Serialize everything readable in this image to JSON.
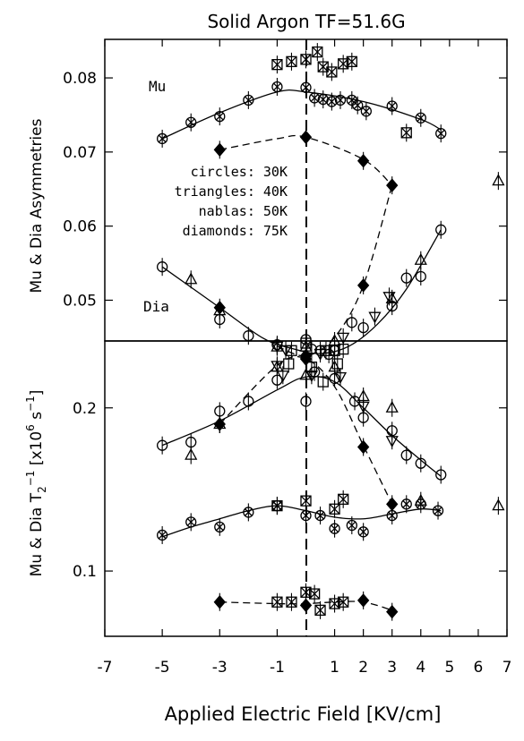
{
  "chart_data": {
    "type": "scatter",
    "title": "Solid Argon TF=51.6G",
    "xlabel": "Applied Electric Field [KV/cm]",
    "xlim": [
      -7,
      7
    ],
    "x_ticks": [
      -7,
      -5,
      -3,
      -1,
      1,
      2,
      3,
      4,
      5,
      6,
      7
    ],
    "x_tick_labels": [
      "-7",
      "-5",
      "-3",
      "-1",
      "1",
      "2",
      "3",
      "4",
      "5",
      "6",
      "7"
    ],
    "grid": false,
    "panels": [
      {
        "id": "top",
        "ylabel": "Mu & Dia Asymmetries",
        "ylim": [
          0.0445,
          0.0852
        ],
        "y_ticks": [
          0.05,
          0.06,
          0.07,
          0.08
        ],
        "y_tick_labels": [
          "0.05",
          "0.06",
          "0.07",
          "0.08"
        ],
        "annotations": {
          "mu": "Mu",
          "dia": "Dia",
          "legend_lines": [
            "circles: 30K",
            "triangles: 40K",
            "nablas: 50K",
            "diamonds: 75K"
          ]
        },
        "series": [
          {
            "marker": "crossed-circle",
            "label": "Mu",
            "x": [
              -5,
              -4,
              -3,
              -2,
              -1,
              0,
              0.3,
              0.6,
              0.9,
              1.2,
              1.6,
              1.8,
              2.1,
              3,
              4,
              4.7
            ],
            "y": [
              0.0718,
              0.074,
              0.0748,
              0.077,
              0.0788,
              0.0787,
              0.0773,
              0.0771,
              0.0768,
              0.077,
              0.077,
              0.0763,
              0.0755,
              0.0762,
              0.0746,
              0.0725
            ]
          },
          {
            "marker": "crossed-square",
            "x": [
              -1,
              -0.5,
              0,
              0.4,
              0.6,
              0.9,
              1.3,
              1.6,
              3.5
            ],
            "y": [
              0.0818,
              0.0822,
              0.0825,
              0.0835,
              0.0815,
              0.0808,
              0.0819,
              0.0822,
              0.0726
            ]
          },
          {
            "marker": "filled-diamond",
            "label": "75K",
            "x": [
              -3,
              0,
              2,
              3
            ],
            "y": [
              0.0703,
              0.072,
              0.0688,
              0.0655
            ]
          },
          {
            "marker": "open-circle",
            "label": "30K",
            "x": [
              -5,
              -3,
              -2,
              -1,
              0,
              0.2,
              0.5,
              0.8,
              1,
              1.6,
              2,
              3,
              3.5,
              4,
              4.7
            ],
            "y": [
              0.0545,
              0.0474,
              0.0452,
              0.044,
              0.0447,
              0.0434,
              0.0432,
              0.0427,
              0.0432,
              0.047,
              0.0463,
              0.0492,
              0.053,
              0.0532,
              0.0595
            ]
          },
          {
            "marker": "triangle",
            "label": "40K",
            "x": [
              -4,
              -3,
              -1,
              0,
              1,
              3,
              4,
              6.7
            ],
            "y": [
              0.0528,
              0.0486,
              0.0437,
              0.0437,
              0.0445,
              0.0502,
              0.0554,
              0.0661
            ]
          },
          {
            "marker": "nabla",
            "label": "50K",
            "x": [
              -1,
              -0.7,
              0.5,
              1.3,
              2.4,
              2.9
            ],
            "y": [
              0.0438,
              0.0433,
              0.0428,
              0.045,
              0.0478,
              0.0505
            ]
          },
          {
            "marker": "filled-diamond",
            "label": "75K",
            "x": [
              -3,
              0,
              2
            ],
            "y": [
              0.049,
              0.0425,
              0.052
            ]
          },
          {
            "marker": "open-square",
            "x": [
              -0.5,
              0,
              0.7,
              1,
              1.3
            ],
            "y": [
              0.0432,
              0.0442,
              0.0432,
              0.0432,
              0.0434
            ]
          }
        ],
        "curves": [
          {
            "style": "solid",
            "x": [
              -5,
              -3,
              -1,
              0,
              2,
              4,
              4.7
            ],
            "y": [
              0.0718,
              0.0753,
              0.0781,
              0.0781,
              0.0768,
              0.0744,
              0.073
            ]
          },
          {
            "style": "dashed",
            "x": [
              -3,
              -1,
              0,
              2,
              3
            ],
            "y": [
              0.0703,
              0.0718,
              0.072,
              0.069,
              0.0655
            ]
          },
          {
            "style": "solid",
            "x": [
              -5,
              -3,
              -1.5,
              -0.5,
              0.5,
              1.5,
              2.5,
              3.5,
              4.7
            ],
            "y": [
              0.0545,
              0.049,
              0.0449,
              0.0435,
              0.0428,
              0.0438,
              0.0468,
              0.0515,
              0.0595
            ]
          },
          {
            "style": "dashed",
            "x": [
              -1,
              0,
              1,
              2,
              3
            ],
            "y": [
              0.0438,
              0.0425,
              0.045,
              0.052,
              0.0655
            ]
          }
        ]
      },
      {
        "id": "bottom",
        "ylabel": "Mu & Dia T2^-1 [x10^6 s^-1]",
        "ylim": [
          0.06,
          0.241
        ],
        "y_ticks": [
          0.1,
          0.2
        ],
        "y_tick_labels": [
          "0.1",
          "0.2"
        ],
        "series": [
          {
            "marker": "open-circle",
            "label": "30K",
            "x": [
              -5,
              -4,
              -3,
              -2,
              -1,
              0,
              0.3,
              1,
              1.7,
              2,
              3,
              3.5,
              4,
              4.7
            ],
            "y": [
              0.177,
              0.179,
              0.198,
              0.204,
              0.217,
              0.204,
              0.222,
              0.218,
              0.204,
              0.194,
              0.186,
              0.171,
              0.166,
              0.159
            ]
          },
          {
            "marker": "triangle",
            "label": "40K",
            "x": [
              -4,
              -3,
              -1,
              0,
              1,
              2,
              3,
              4,
              6.7
            ],
            "y": [
              0.171,
              0.19,
              0.225,
              0.22,
              0.225,
              0.207,
              0.2,
              0.143,
              0.14
            ]
          },
          {
            "marker": "nabla",
            "label": "50K",
            "x": [
              -1,
              -0.8,
              0.2,
              1.2,
              2,
              3
            ],
            "y": [
              0.226,
              0.22,
              0.22,
              0.219,
              0.201,
              0.18
            ]
          },
          {
            "marker": "open-square",
            "x": [
              -0.6,
              0.2,
              0.6,
              1.1
            ],
            "y": [
              0.227,
              0.225,
              0.216,
              0.227
            ]
          },
          {
            "marker": "filled-diamond",
            "label": "75K",
            "x": [
              -3,
              0,
              2,
              3
            ],
            "y": [
              0.19,
              0.23,
              0.176,
              0.141
            ]
          },
          {
            "marker": "crossed-circle",
            "x": [
              -5,
              -4,
              -3,
              -2,
              -1,
              0,
              0.5,
              1,
              1.6,
              2,
              3,
              3.5,
              4,
              4.6
            ],
            "y": [
              0.122,
              0.13,
              0.127,
              0.136,
              0.14,
              0.134,
              0.134,
              0.126,
              0.128,
              0.124,
              0.134,
              0.141,
              0.141,
              0.137
            ]
          },
          {
            "marker": "crossed-square",
            "x": [
              -1,
              0,
              1,
              1.3
            ],
            "y": [
              0.14,
              0.143,
              0.138,
              0.144
            ]
          },
          {
            "marker": "filled-diamond",
            "label": "75K",
            "x": [
              -3,
              0,
              2,
              3
            ],
            "y": [
              0.081,
              0.079,
              0.082,
              0.075
            ]
          },
          {
            "marker": "crossed-square",
            "x": [
              -1,
              -0.5,
              0,
              0.3,
              0.5,
              1,
              1.3
            ],
            "y": [
              0.081,
              0.081,
              0.087,
              0.086,
              0.076,
              0.08,
              0.081
            ]
          }
        ],
        "curves": [
          {
            "style": "solid",
            "x": [
              -5,
              -3,
              -1,
              0,
              1,
              2,
              3,
              4,
              4.7
            ],
            "y": [
              0.177,
              0.192,
              0.211,
              0.219,
              0.216,
              0.2,
              0.183,
              0.168,
              0.158
            ]
          },
          {
            "style": "dashed",
            "x": [
              -3,
              -1,
              0,
              1,
              2,
              3
            ],
            "y": [
              0.19,
              0.226,
              0.23,
              0.213,
              0.177,
              0.141
            ]
          },
          {
            "style": "solid",
            "x": [
              -5,
              -4,
              -3,
              -2,
              -1,
              0,
              1,
              2,
              3,
              4,
              4.7
            ],
            "y": [
              0.121,
              0.127,
              0.132,
              0.137,
              0.14,
              0.137,
              0.133,
              0.132,
              0.135,
              0.138,
              0.137
            ]
          },
          {
            "style": "dashed",
            "x": [
              -3,
              -1,
              0,
              1,
              2,
              3
            ],
            "y": [
              0.081,
              0.08,
              0.08,
              0.081,
              0.081,
              0.076
            ]
          }
        ]
      }
    ]
  }
}
